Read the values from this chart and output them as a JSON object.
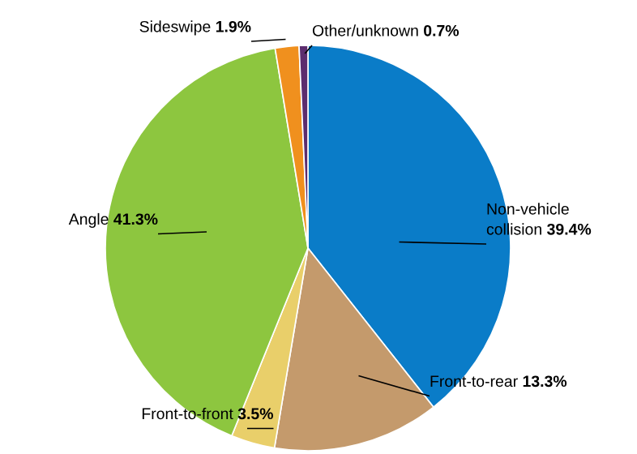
{
  "chart_data": {
    "type": "pie",
    "categories": [
      "Non-vehicle collision",
      "Front-to-rear",
      "Front-to-front",
      "Angle",
      "Sideswipe",
      "Other/unknown"
    ],
    "values": [
      39.4,
      13.3,
      3.5,
      41.3,
      1.9,
      0.7
    ],
    "value_labels": [
      "39.4%",
      "13.3%",
      "3.5%",
      "41.3%",
      "1.9%",
      "0.7%"
    ],
    "colors": [
      "#0a7cc8",
      "#c49a6c",
      "#e9cf6a",
      "#8dc63f",
      "#f0901e",
      "#5c2d6e"
    ]
  }
}
